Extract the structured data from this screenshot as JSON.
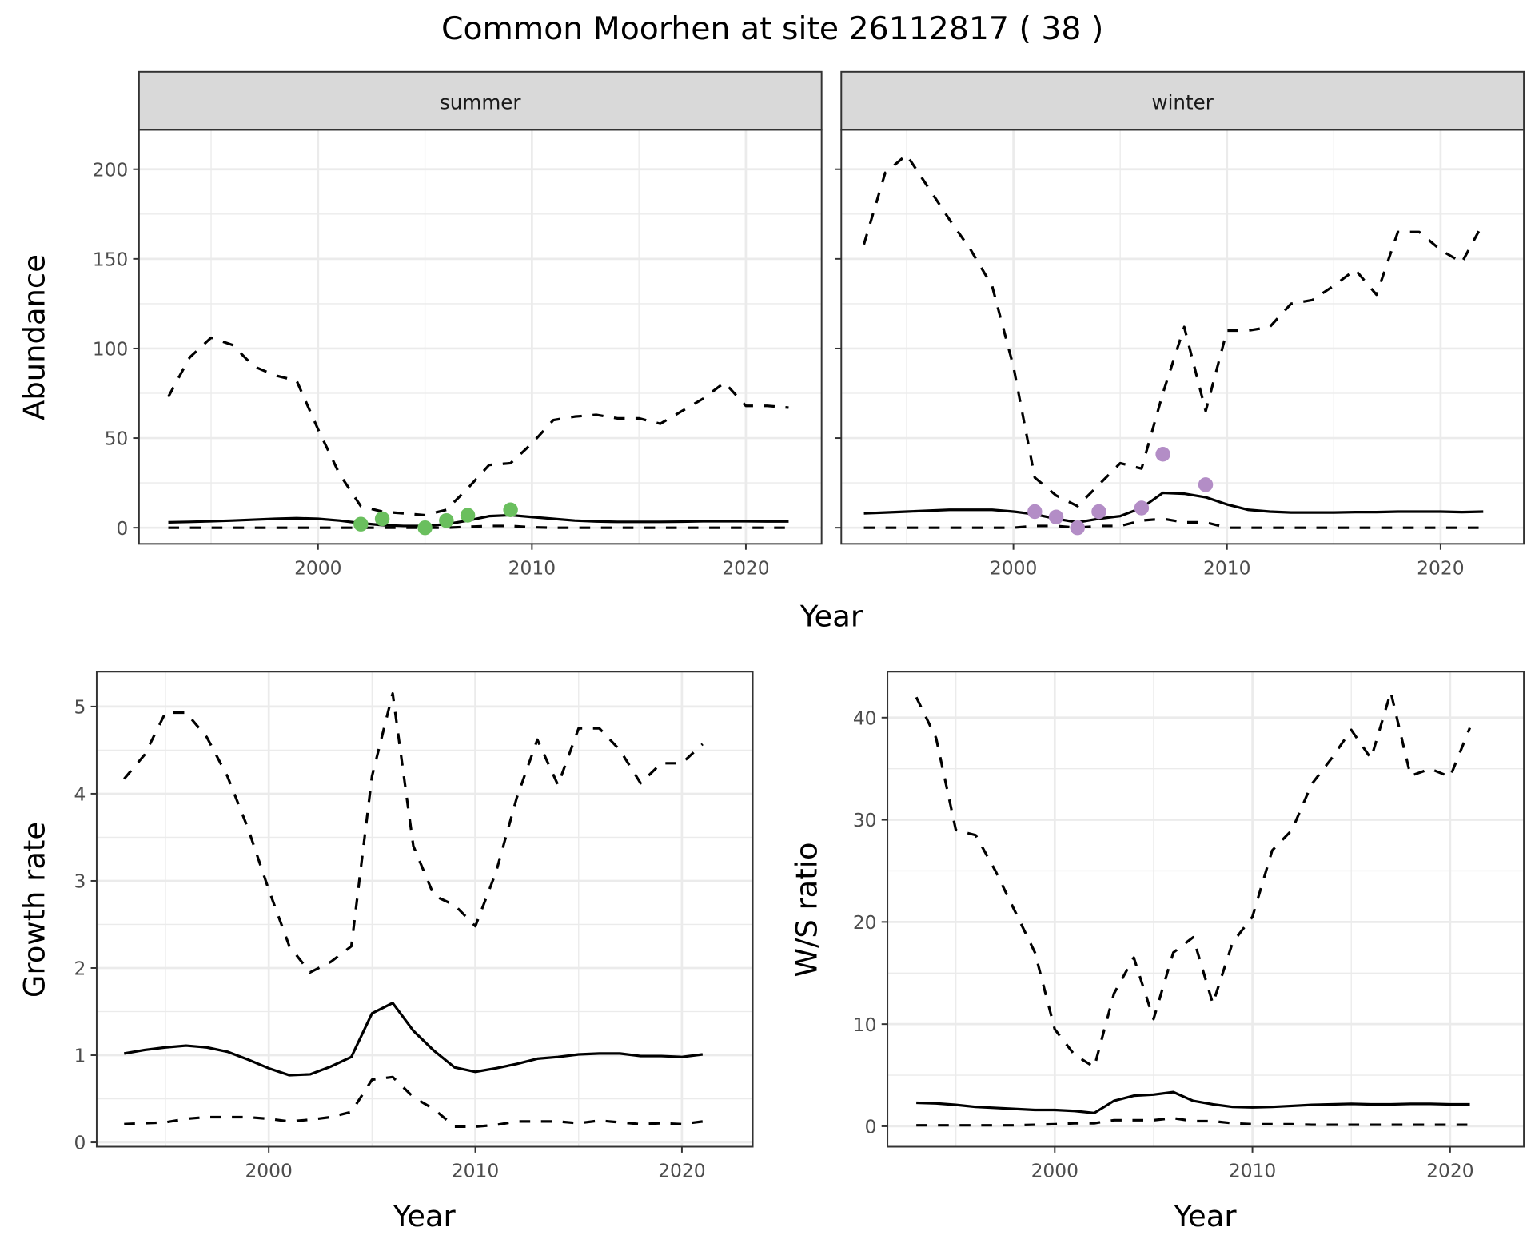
{
  "chart_data": {
    "title": "Common Moorhen at site 26112817 ( 38 )",
    "type": "line",
    "panels": [
      {
        "id": "summer",
        "strip": "summer",
        "xlabel": "Year",
        "ylabel": "Abundance",
        "xticks": [
          2000,
          2010,
          2020
        ],
        "yticks": [
          0,
          50,
          100,
          150,
          200
        ],
        "ylim": [
          -9,
          222
        ],
        "x": [
          1993,
          1994,
          1995,
          1996,
          1997,
          1998,
          1999,
          2000,
          2001,
          2002,
          2003,
          2004,
          2005,
          2006,
          2007,
          2008,
          2009,
          2010,
          2011,
          2012,
          2013,
          2014,
          2015,
          2016,
          2017,
          2018,
          2019,
          2020,
          2021,
          2022
        ],
        "series": [
          {
            "name": "upper",
            "style": "dashed",
            "values": [
              73,
              95,
              106,
              102,
              90,
              85,
              82,
              55,
              30,
              12,
              9,
              8,
              7,
              10,
              22,
              35,
              36,
              47,
              60,
              62,
              63,
              61,
              61,
              58,
              65,
              72,
              81,
              68,
              68,
              67
            ]
          },
          {
            "name": "estimate",
            "style": "solid",
            "values": [
              3,
              3.3,
              3.6,
              4,
              4.5,
              5,
              5.3,
              5,
              4,
              2.5,
              1.5,
              1,
              1,
              2,
              4,
              6.5,
              7,
              6,
              5,
              4,
              3.5,
              3.3,
              3.3,
              3.3,
              3.4,
              3.6,
              3.6,
              3.6,
              3.5,
              3.5
            ]
          },
          {
            "name": "lower",
            "style": "dashed",
            "values": [
              0,
              0,
              0,
              0,
              0,
              0,
              0,
              0,
              0,
              0,
              0,
              0,
              0,
              0,
              0.5,
              1,
              1,
              0.3,
              0,
              0,
              0,
              0,
              0,
              0,
              0,
              0,
              0,
              0,
              0,
              0
            ]
          }
        ],
        "points": {
          "color": "#6abf5e",
          "x": [
            2002,
            2003,
            2005,
            2006,
            2007,
            2009
          ],
          "y": [
            2,
            5,
            0,
            4,
            7,
            10
          ]
        }
      },
      {
        "id": "winter",
        "strip": "winter",
        "xlabel": "Year",
        "ylabel": "Abundance",
        "xticks": [
          2000,
          2010,
          2020
        ],
        "yticks": [
          0,
          50,
          100,
          150,
          200
        ],
        "ylim": [
          -9,
          222
        ],
        "x": [
          1993,
          1994,
          1995,
          1996,
          1997,
          1998,
          1999,
          2000,
          2001,
          2002,
          2003,
          2004,
          2005,
          2006,
          2007,
          2008,
          2009,
          2010,
          2011,
          2012,
          2013,
          2014,
          2015,
          2016,
          2017,
          2018,
          2019,
          2020,
          2021,
          2022
        ],
        "series": [
          {
            "name": "upper",
            "style": "dashed",
            "values": [
              158,
              198,
              208,
              190,
              172,
              155,
              135,
              90,
              28,
              18,
              12,
              24,
              36,
              33,
              75,
              112,
              65,
              110,
              110,
              112,
              125,
              127,
              135,
              144,
              130,
              165,
              165,
              155,
              148,
              170
            ]
          },
          {
            "name": "estimate",
            "style": "solid",
            "values": [
              8,
              8.5,
              9,
              9.5,
              10,
              10,
              10,
              9,
              7.5,
              5,
              3,
              5,
              6.5,
              11,
              19.5,
              19,
              17,
              13,
              10,
              9,
              8.5,
              8.5,
              8.5,
              8.7,
              8.7,
              9,
              9,
              9,
              8.7,
              9
            ]
          },
          {
            "name": "lower",
            "style": "dashed",
            "values": [
              0,
              0,
              0,
              0,
              0,
              0,
              0,
              0,
              1,
              1,
              0,
              1,
              1,
              4,
              5,
              3,
              3,
              0,
              0,
              0,
              0,
              0,
              0,
              0,
              0,
              0,
              0,
              0,
              0,
              0
            ]
          }
        ],
        "points": {
          "color": "#b38dc6",
          "x": [
            2001,
            2002,
            2003,
            2004,
            2006,
            2007,
            2009
          ],
          "y": [
            9,
            6,
            0,
            9,
            11,
            41,
            24
          ]
        }
      },
      {
        "id": "growth",
        "xlabel": "Year",
        "ylabel": "Growth rate",
        "xticks": [
          2000,
          2010,
          2020
        ],
        "yticks": [
          0,
          1,
          2,
          3,
          4,
          5
        ],
        "ylim": [
          -0.05,
          5.4
        ],
        "x": [
          1993,
          1994,
          1995,
          1996,
          1997,
          1998,
          1999,
          2000,
          2001,
          2002,
          2003,
          2004,
          2005,
          2006,
          2007,
          2008,
          2009,
          2010,
          2011,
          2012,
          2013,
          2014,
          2015,
          2016,
          2017,
          2018,
          2019,
          2020,
          2021
        ],
        "series": [
          {
            "name": "upper",
            "style": "dashed",
            "values": [
              4.17,
              4.45,
              4.93,
              4.93,
              4.65,
              4.2,
              3.6,
              2.9,
              2.25,
              1.95,
              2.07,
              2.25,
              4.2,
              5.15,
              3.4,
              2.83,
              2.72,
              2.48,
              3.1,
              3.95,
              4.62,
              4.1,
              4.75,
              4.75,
              4.5,
              4.12,
              4.35,
              4.35,
              4.57
            ]
          },
          {
            "name": "estimate",
            "style": "solid",
            "values": [
              1.02,
              1.06,
              1.09,
              1.11,
              1.09,
              1.04,
              0.95,
              0.85,
              0.77,
              0.78,
              0.87,
              0.98,
              1.48,
              1.6,
              1.28,
              1.05,
              0.86,
              0.81,
              0.85,
              0.9,
              0.96,
              0.98,
              1.01,
              1.02,
              1.02,
              0.99,
              0.99,
              0.98,
              1.01
            ]
          },
          {
            "name": "lower",
            "style": "dashed",
            "values": [
              0.21,
              0.22,
              0.23,
              0.27,
              0.29,
              0.29,
              0.29,
              0.27,
              0.24,
              0.26,
              0.29,
              0.35,
              0.72,
              0.75,
              0.52,
              0.38,
              0.18,
              0.18,
              0.2,
              0.24,
              0.24,
              0.24,
              0.22,
              0.25,
              0.23,
              0.21,
              0.22,
              0.21,
              0.24
            ]
          }
        ]
      },
      {
        "id": "ratio",
        "xlabel": "Year",
        "ylabel": "W/S ratio",
        "xticks": [
          2000,
          2010,
          2020
        ],
        "yticks": [
          0,
          10,
          20,
          30,
          40
        ],
        "ylim": [
          -2,
          44.5
        ],
        "x": [
          1993,
          1994,
          1995,
          1996,
          1997,
          1998,
          1999,
          2000,
          2001,
          2002,
          2003,
          2004,
          2005,
          2006,
          2007,
          2008,
          2009,
          2010,
          2011,
          2012,
          2013,
          2014,
          2015,
          2016,
          2017,
          2018,
          2019,
          2020,
          2021
        ],
        "series": [
          {
            "name": "upper",
            "style": "dashed",
            "values": [
              42,
              38,
              29,
              28.5,
              25,
              21,
              17,
              9.5,
              7,
              5.8,
              13,
              16.5,
              10.5,
              17,
              18.5,
              12,
              18,
              20.5,
              27,
              29,
              33.5,
              36,
              38.8,
              36,
              42.5,
              34.3,
              35,
              34.2,
              39
            ]
          },
          {
            "name": "estimate",
            "style": "solid",
            "values": [
              2.3,
              2.25,
              2.1,
              1.9,
              1.8,
              1.7,
              1.6,
              1.6,
              1.5,
              1.3,
              2.5,
              3.0,
              3.1,
              3.35,
              2.5,
              2.15,
              1.9,
              1.85,
              1.9,
              2.0,
              2.1,
              2.15,
              2.2,
              2.15,
              2.15,
              2.2,
              2.2,
              2.15,
              2.15
            ]
          },
          {
            "name": "lower",
            "style": "dashed",
            "values": [
              0.1,
              0.1,
              0.1,
              0.1,
              0.1,
              0.1,
              0.15,
              0.2,
              0.3,
              0.3,
              0.6,
              0.6,
              0.6,
              0.8,
              0.5,
              0.5,
              0.3,
              0.2,
              0.2,
              0.2,
              0.15,
              0.15,
              0.15,
              0.15,
              0.15,
              0.15,
              0.15,
              0.15,
              0.15
            ]
          }
        ]
      }
    ],
    "grid": true,
    "legend": "none"
  }
}
